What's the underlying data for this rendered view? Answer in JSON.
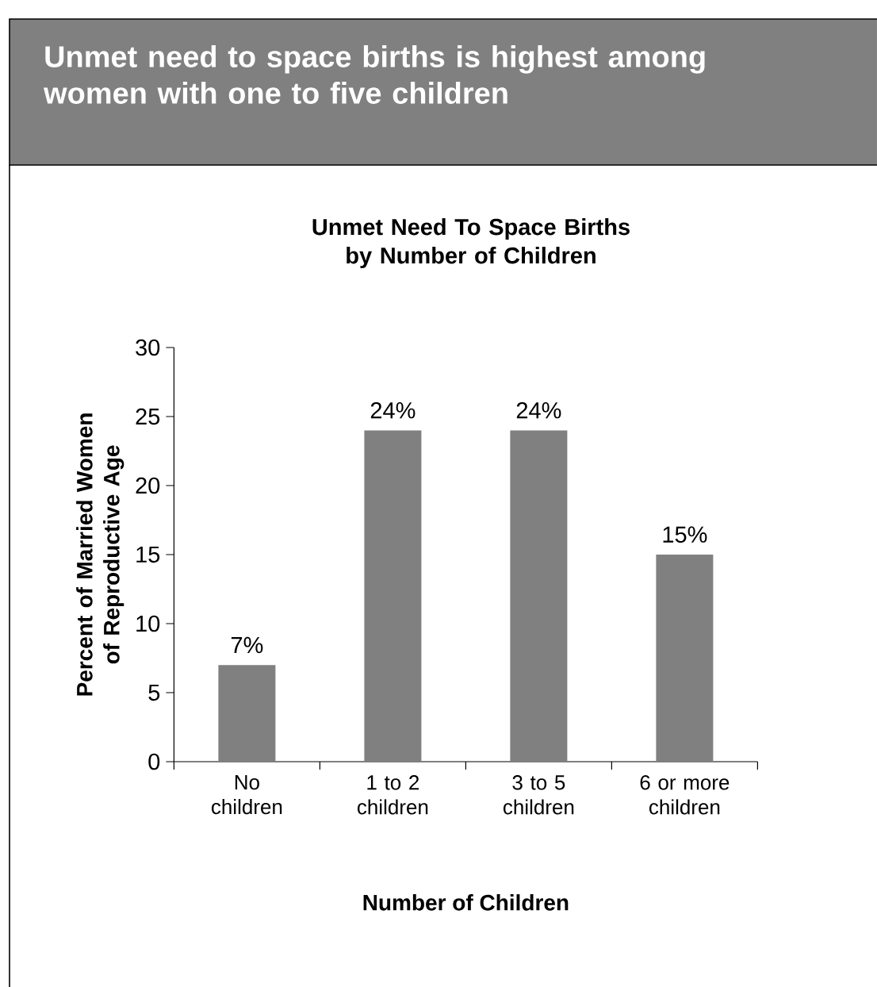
{
  "chart_data": {
    "type": "bar",
    "title": "Unmet need to space births is highest among women with one to five children",
    "subtitle": "Unmet Need To Space Births by Number of Children",
    "xlabel": "Number of Children",
    "ylabel": "Percent of Married Women of Reproductive Age",
    "categories": [
      "No children",
      "1 to 2 children",
      "3 to 5 children",
      "6 or more children"
    ],
    "values": [
      7,
      24,
      24,
      15
    ],
    "value_labels": [
      "7%",
      "24%",
      "24%",
      "15%"
    ],
    "color": "#808080",
    "ylim": [
      0,
      30
    ],
    "yticks": [
      0,
      5,
      10,
      15,
      20,
      25,
      30
    ],
    "grid": false
  }
}
